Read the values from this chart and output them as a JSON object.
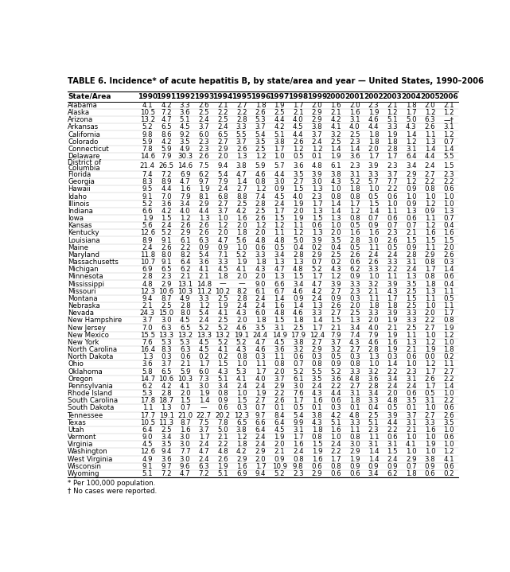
{
  "title": "TABLE 6. Incidence* of acute hepatitis B, by state/area and year — United States, 1990–2006",
  "headers": [
    "State/Area",
    "1990",
    "1991",
    "1992",
    "1993",
    "1994",
    "1995",
    "1996",
    "1997",
    "1998",
    "1999",
    "2000",
    "2001",
    "2002",
    "2003",
    "2004",
    "2005",
    "2006"
  ],
  "rows": [
    [
      "Alabama",
      "4.1",
      "4.2",
      "3.3",
      "2.6",
      "2.1",
      "2.7",
      "1.8",
      "1.9",
      "1.7",
      "2.0",
      "1.6",
      "2.0",
      "2.3",
      "2.1",
      "1.8",
      "2.0",
      "2.1"
    ],
    [
      "Alaska",
      "10.5",
      "7.2",
      "3.6",
      "2.5",
      "2.2",
      "2.2",
      "2.6",
      "2.5",
      "2.1",
      "2.9",
      "2.1",
      "1.6",
      "1.9",
      "1.2",
      "1.7",
      "1.2",
      "1.2"
    ],
    [
      "Arizona",
      "13.2",
      "4.7",
      "5.1",
      "2.4",
      "2.5",
      "2.8",
      "5.3",
      "4.4",
      "4.0",
      "2.9",
      "4.2",
      "3.1",
      "4.6",
      "5.1",
      "5.0",
      "6.3",
      "—†"
    ],
    [
      "Arkansas",
      "5.2",
      "6.5",
      "4.5",
      "3.7",
      "2.4",
      "3.3",
      "3.7",
      "4.2",
      "4.5",
      "3.8",
      "4.1",
      "4.0",
      "4.4",
      "3.3",
      "4.3",
      "2.6",
      "3.1"
    ],
    [
      "California",
      "9.8",
      "8.6",
      "9.2",
      "6.0",
      "6.5",
      "5.5",
      "5.4",
      "5.1",
      "4.4",
      "3.7",
      "3.2",
      "2.5",
      "1.8",
      "1.9",
      "1.4",
      "1.1",
      "1.2"
    ],
    [
      "Colorado",
      "5.9",
      "4.2",
      "3.5",
      "2.3",
      "2.7",
      "3.7",
      "3.5",
      "3.8",
      "2.6",
      "2.4",
      "2.5",
      "2.3",
      "1.8",
      "1.8",
      "1.2",
      "1.3",
      "0.7"
    ],
    [
      "Connecticut",
      "7.8",
      "5.9",
      "4.9",
      "2.3",
      "2.9",
      "2.6",
      "2.5",
      "1.7",
      "1.2",
      "1.2",
      "1.4",
      "1.4",
      "2.0",
      "2.8",
      "3.1",
      "1.4",
      "1.4"
    ],
    [
      "Delaware",
      "14.6",
      "7.9",
      "30.3",
      "2.6",
      "2.0",
      "1.3",
      "1.2",
      "1.0",
      "0.5",
      "0.1",
      "1.9",
      "3.6",
      "1.7",
      "1.7",
      "6.4",
      "4.4",
      "5.5"
    ],
    [
      "District of\nColumbia",
      "21.4",
      "26.5",
      "14.6",
      "7.5",
      "9.4",
      "3.8",
      "5.9",
      "5.7",
      "3.6",
      "4.8",
      "6.1",
      "2.3",
      "3.9",
      "2.3",
      "3.4",
      "2.4",
      "1.5"
    ],
    [
      "Florida",
      "7.4",
      "7.2",
      "6.9",
      "6.2",
      "5.4",
      "4.7",
      "4.6",
      "4.4",
      "3.5",
      "3.9",
      "3.8",
      "3.1",
      "3.3",
      "3.7",
      "2.9",
      "2.7",
      "2.3"
    ],
    [
      "Georgia",
      "8.3",
      "8.9",
      "4.7",
      "9.7",
      "7.9",
      "1.4",
      "0.8",
      "3.0",
      "2.7",
      "3.0",
      "4.3",
      "5.2",
      "5.7",
      "7.7",
      "1.2",
      "2.2",
      "2.2"
    ],
    [
      "Hawaii",
      "9.5",
      "4.4",
      "1.6",
      "1.9",
      "2.4",
      "2.7",
      "1.2",
      "0.9",
      "1.5",
      "1.3",
      "1.0",
      "1.8",
      "1.0",
      "2.2",
      "0.9",
      "0.8",
      "0.6"
    ],
    [
      "Idaho",
      "9.1",
      "7.0",
      "7.9",
      "8.1",
      "6.8",
      "8.8",
      "7.4",
      "4.5",
      "4.0",
      "2.3",
      "0.8",
      "0.8",
      "0.5",
      "0.6",
      "1.0",
      "1.0",
      "1.0"
    ],
    [
      "Illinois",
      "5.2",
      "3.6",
      "3.4",
      "2.9",
      "2.7",
      "2.5",
      "2.8",
      "2.4",
      "1.9",
      "1.7",
      "1.4",
      "1.7",
      "1.5",
      "1.0",
      "0.9",
      "1.2",
      "1.0"
    ],
    [
      "Indiana",
      "6.6",
      "4.2",
      "4.0",
      "4.4",
      "3.7",
      "4.2",
      "2.5",
      "1.7",
      "2.0",
      "1.3",
      "1.4",
      "1.2",
      "1.4",
      "1.1",
      "1.3",
      "0.9",
      "1.3"
    ],
    [
      "Iowa",
      "1.9",
      "1.5",
      "1.2",
      "1.3",
      "1.0",
      "1.6",
      "2.6",
      "1.5",
      "1.9",
      "1.5",
      "1.3",
      "0.8",
      "0.7",
      "0.6",
      "0.6",
      "1.1",
      "0.7"
    ],
    [
      "Kansas",
      "5.6",
      "2.4",
      "2.6",
      "2.6",
      "1.2",
      "2.0",
      "1.2",
      "1.2",
      "1.1",
      "0.6",
      "1.0",
      "0.5",
      "0.9",
      "0.7",
      "0.7",
      "1.2",
      "0.4"
    ],
    [
      "Kentucky",
      "12.6",
      "5.2",
      "2.9",
      "2.6",
      "2.0",
      "1.8",
      "2.0",
      "1.1",
      "1.2",
      "1.3",
      "2.0",
      "1.6",
      "1.6",
      "2.3",
      "2.1",
      "1.6",
      "1.6"
    ],
    [
      "Louisiana",
      "8.9",
      "9.1",
      "6.1",
      "6.3",
      "4.7",
      "5.6",
      "4.8",
      "4.8",
      "5.0",
      "3.9",
      "3.5",
      "2.8",
      "3.0",
      "2.6",
      "1.5",
      "1.5",
      "1.5"
    ],
    [
      "Maine",
      "2.4",
      "2.6",
      "2.2",
      "0.9",
      "0.9",
      "1.0",
      "0.6",
      "0.5",
      "0.4",
      "0.2",
      "0.4",
      "0.5",
      "1.1",
      "0.5",
      "0.9",
      "1.1",
      "2.0"
    ],
    [
      "Maryland",
      "11.8",
      "8.0",
      "8.2",
      "5.4",
      "7.1",
      "5.2",
      "3.3",
      "3.4",
      "2.8",
      "2.9",
      "2.5",
      "2.6",
      "2.4",
      "2.4",
      "2.8",
      "2.9",
      "2.6"
    ],
    [
      "Massachusetts",
      "10.7",
      "9.1",
      "6.4",
      "3.6",
      "3.3",
      "1.9",
      "1.8",
      "1.3",
      "1.3",
      "0.7",
      "0.2",
      "0.6",
      "2.6",
      "3.3",
      "3.1",
      "0.8",
      "0.3"
    ],
    [
      "Michigan",
      "6.9",
      "6.5",
      "6.2",
      "4.1",
      "4.5",
      "4.1",
      "4.3",
      "4.7",
      "4.8",
      "5.2",
      "4.3",
      "6.2",
      "3.3",
      "2.2",
      "2.4",
      "1.7",
      "1.4"
    ],
    [
      "Minnesota",
      "2.8",
      "2.3",
      "2.1",
      "2.1",
      "1.8",
      "2.0",
      "2.0",
      "1.3",
      "1.5",
      "1.7",
      "1.2",
      "0.9",
      "1.0",
      "1.1",
      "1.3",
      "0.8",
      "0.6"
    ],
    [
      "Mississippi",
      "4.8",
      "2.9",
      "13.1",
      "14.8",
      "—",
      "—",
      "9.0",
      "6.6",
      "3.4",
      "4.7",
      "3.9",
      "3.3",
      "3.2",
      "3.9",
      "3.5",
      "1.8",
      "0.4"
    ],
    [
      "Missouri",
      "12.3",
      "10.6",
      "10.3",
      "11.2",
      "10.2",
      "8.2",
      "6.1",
      "6.7",
      "4.6",
      "4.2",
      "2.7",
      "2.3",
      "2.1",
      "4.3",
      "2.5",
      "1.3",
      "1.1"
    ],
    [
      "Montana",
      "9.4",
      "8.7",
      "4.9",
      "3.3",
      "2.5",
      "2.8",
      "2.4",
      "1.4",
      "0.9",
      "2.4",
      "0.9",
      "0.3",
      "1.1",
      "1.7",
      "1.5",
      "1.1",
      "0.5"
    ],
    [
      "Nebraska",
      "2.1",
      "2.5",
      "2.8",
      "1.2",
      "1.9",
      "2.4",
      "2.4",
      "1.6",
      "1.4",
      "1.3",
      "2.6",
      "2.0",
      "1.8",
      "1.8",
      "2.5",
      "1.0",
      "1.1"
    ],
    [
      "Nevada",
      "24.3",
      "15.0",
      "8.0",
      "5.4",
      "4.1",
      "4.3",
      "6.0",
      "4.8",
      "4.6",
      "3.3",
      "2.7",
      "2.5",
      "3.3",
      "3.9",
      "3.3",
      "2.0",
      "1.7"
    ],
    [
      "New Hampshire",
      "3.7",
      "3.0",
      "4.5",
      "2.4",
      "2.5",
      "2.0",
      "1.8",
      "1.5",
      "1.8",
      "1.4",
      "1.5",
      "1.3",
      "2.0",
      "1.9",
      "3.3",
      "2.2",
      "0.8"
    ],
    [
      "New Jersey",
      "7.0",
      "6.3",
      "6.5",
      "5.2",
      "5.2",
      "4.6",
      "3.5",
      "3.1",
      "2.5",
      "1.7",
      "2.1",
      "3.4",
      "4.0",
      "2.1",
      "2.5",
      "2.7",
      "1.9"
    ],
    [
      "New Mexico",
      "15.5",
      "13.3",
      "13.2",
      "13.3",
      "13.2",
      "19.1",
      "24.4",
      "14.9",
      "17.9",
      "12.4",
      "7.9",
      "7.4",
      "7.9",
      "1.9",
      "1.1",
      "1.0",
      "1.2"
    ],
    [
      "New York",
      "7.6",
      "5.3",
      "5.3",
      "4.5",
      "5.2",
      "5.2",
      "4.7",
      "4.5",
      "3.8",
      "2.7",
      "3.7",
      "4.3",
      "4.6",
      "1.6",
      "1.3",
      "1.2",
      "1.0"
    ],
    [
      "North Carolina",
      "16.4",
      "8.3",
      "6.3",
      "4.5",
      "4.1",
      "4.3",
      "4.6",
      "3.6",
      "3.2",
      "2.9",
      "3.2",
      "2.7",
      "2.8",
      "1.9",
      "2.1",
      "1.9",
      "1.8"
    ],
    [
      "North Dakota",
      "1.3",
      "0.3",
      "0.6",
      "0.2",
      "0.2",
      "0.8",
      "0.3",
      "1.1",
      "0.6",
      "0.3",
      "0.5",
      "0.3",
      "1.3",
      "0.3",
      "0.6",
      "0.0",
      "0.2"
    ],
    [
      "Ohio",
      "3.6",
      "3.7",
      "2.1",
      "1.7",
      "1.5",
      "1.0",
      "1.1",
      "0.8",
      "0.7",
      "0.8",
      "0.9",
      "0.8",
      "1.0",
      "1.4",
      "1.0",
      "1.2",
      "1.1"
    ],
    [
      "Oklahoma",
      "5.8",
      "6.5",
      "5.9",
      "6.0",
      "4.3",
      "5.3",
      "1.7",
      "2.0",
      "5.2",
      "5.5",
      "5.2",
      "3.3",
      "3.2",
      "2.2",
      "2.3",
      "1.7",
      "2.7"
    ],
    [
      "Oregon",
      "14.7",
      "10.6",
      "10.3",
      "7.3",
      "5.1",
      "4.1",
      "4.0",
      "3.7",
      "6.1",
      "3.5",
      "3.6",
      "4.8",
      "3.6",
      "3.4",
      "3.1",
      "2.6",
      "2.2"
    ],
    [
      "Pennsylvania",
      "6.2",
      "4.2",
      "4.1",
      "3.0",
      "3.4",
      "2.4",
      "2.4",
      "2.9",
      "3.0",
      "2.4",
      "2.2",
      "2.7",
      "2.8",
      "2.4",
      "2.4",
      "1.7",
      "1.4"
    ],
    [
      "Rhode Island",
      "5.3",
      "2.8",
      "2.0",
      "1.9",
      "0.8",
      "1.0",
      "1.9",
      "2.2",
      "7.6",
      "4.3",
      "4.4",
      "3.1",
      "3.4",
      "2.0",
      "0.6",
      "0.5",
      "1.0"
    ],
    [
      "South Carolina",
      "17.8",
      "18.7",
      "1.5",
      "1.4",
      "0.9",
      "1.5",
      "2.7",
      "2.6",
      "1.7",
      "1.6",
      "0.6",
      "1.8",
      "3.3",
      "4.8",
      "3.5",
      "3.1",
      "2.2"
    ],
    [
      "South Dakota",
      "1.1",
      "1.3",
      "0.7",
      "—",
      "0.6",
      "0.3",
      "0.7",
      "0.1",
      "0.5",
      "0.1",
      "0.3",
      "0.1",
      "0.4",
      "0.5",
      "0.1",
      "1.0",
      "0.6"
    ],
    [
      "Tennessee",
      "17.7",
      "19.1",
      "21.0",
      "22.7",
      "20.2",
      "12.3",
      "9.7",
      "8.4",
      "5.4",
      "3.8",
      "4.2",
      "4.8",
      "2.5",
      "3.9",
      "3.7",
      "2.7",
      "2.6"
    ],
    [
      "Texas",
      "10.5",
      "11.3",
      "8.7",
      "7.5",
      "7.8",
      "6.5",
      "6.6",
      "6.4",
      "9.9",
      "4.3",
      "5.1",
      "3.3",
      "5.1",
      "4.4",
      "3.1",
      "3.3",
      "3.5"
    ],
    [
      "Utah",
      "6.4",
      "2.5",
      "1.6",
      "3.7",
      "5.0",
      "3.8",
      "6.4",
      "4.5",
      "3.1",
      "1.8",
      "1.6",
      "1.1",
      "2.3",
      "2.2",
      "2.1",
      "1.6",
      "1.0"
    ],
    [
      "Vermont",
      "9.0",
      "3.4",
      "3.0",
      "1.7",
      "2.1",
      "1.2",
      "2.4",
      "1.9",
      "1.7",
      "0.8",
      "1.0",
      "0.8",
      "1.1",
      "0.6",
      "1.0",
      "1.0",
      "0.6"
    ],
    [
      "Virginia",
      "4.5",
      "3.5",
      "3.0",
      "2.4",
      "2.2",
      "1.8",
      "2.4",
      "2.0",
      "1.6",
      "1.5",
      "2.4",
      "3.0",
      "3.1",
      "3.1",
      "4.1",
      "1.9",
      "1.0"
    ],
    [
      "Washington",
      "12.6",
      "9.4",
      "7.7",
      "4.7",
      "4.8",
      "4.2",
      "2.9",
      "2.1",
      "2.4",
      "1.9",
      "2.2",
      "2.9",
      "1.4",
      "1.5",
      "1.0",
      "1.0",
      "1.2"
    ],
    [
      "West Virginia",
      "4.9",
      "3.6",
      "3.0",
      "2.4",
      "2.6",
      "2.9",
      "2.0",
      "0.9",
      "0.8",
      "1.6",
      "1.7",
      "1.9",
      "1.4",
      "2.4",
      "2.9",
      "3.8",
      "4.1"
    ],
    [
      "Wisconsin",
      "9.1",
      "9.7",
      "9.6",
      "6.3",
      "1.9",
      "1.6",
      "1.7",
      "10.9",
      "9.8",
      "0.6",
      "0.8",
      "0.9",
      "0.9",
      "0.9",
      "0.7",
      "0.9",
      "0.6"
    ],
    [
      "Wyoming",
      "5.1",
      "7.2",
      "4.7",
      "7.2",
      "5.1",
      "6.9",
      "9.4",
      "5.2",
      "2.3",
      "2.9",
      "0.6",
      "0.6",
      "3.4",
      "6.2",
      "1.8",
      "0.6",
      "0.2"
    ]
  ],
  "footnote1": "* Per 100,000 population.",
  "footnote2": "† No cases were reported.",
  "bg_color": "#ffffff",
  "text_color": "#000000",
  "title_fontsize": 7.2,
  "header_fontsize": 6.5,
  "cell_fontsize": 6.2,
  "footnote_fontsize": 6.2
}
